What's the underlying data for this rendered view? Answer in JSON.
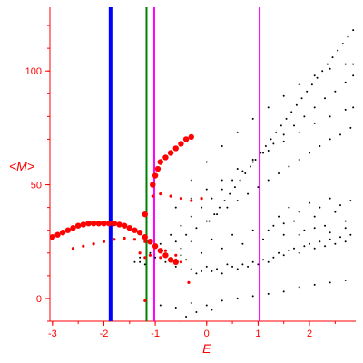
{
  "chart_data": {
    "type": "scatter",
    "xlabel": "E",
    "ylabel": "<M>",
    "xlim": [
      -3.05,
      2.9
    ],
    "ylim": [
      -10,
      128
    ],
    "x_ticks": [
      -3,
      -2,
      -1,
      0,
      1,
      2
    ],
    "y_ticks": [
      0,
      50,
      100
    ],
    "colors": {
      "axis": "#ff0000",
      "tick_labels": "#ff0000",
      "black_points": "#000000",
      "red_points": "#ff0000",
      "vline_blue": "#0000ff",
      "vline_green": "#008000",
      "vline_magenta": "#ff00ff"
    },
    "vertical_lines": [
      {
        "x": -1.87,
        "color": "#0000ff",
        "width": 4
      },
      {
        "x": -1.17,
        "color": "#008000",
        "width": 2
      },
      {
        "x": -1.02,
        "color": "#ff00ff",
        "width": 2
      },
      {
        "x": 1.03,
        "color": "#ff00ff",
        "width": 2
      }
    ],
    "series": [
      {
        "color": "#000000",
        "marker": "dot",
        "points": [
          [
            -1.3,
            16
          ],
          [
            -1.1,
            20
          ],
          [
            -0.9,
            24
          ],
          [
            -0.7,
            28
          ],
          [
            -0.5,
            32
          ],
          [
            -0.3,
            36
          ],
          [
            -0.1,
            40
          ],
          [
            0.1,
            44
          ],
          [
            0.3,
            48
          ],
          [
            0.5,
            52
          ],
          [
            0.7,
            56
          ],
          [
            0.9,
            60
          ],
          [
            1.1,
            64
          ],
          [
            1.3,
            68
          ],
          [
            1.5,
            72
          ],
          [
            1.7,
            76
          ],
          [
            1.9,
            80
          ],
          [
            2.1,
            84
          ],
          [
            2.3,
            88
          ],
          [
            2.5,
            91
          ],
          [
            2.7,
            95
          ],
          [
            2.85,
            98
          ],
          [
            -0.3,
            52
          ],
          [
            0,
            60
          ],
          [
            0.3,
            67
          ],
          [
            0.6,
            73
          ],
          [
            0.9,
            79
          ],
          [
            1.2,
            84
          ],
          [
            1.5,
            89
          ],
          [
            1.8,
            94
          ],
          [
            2.1,
            98
          ],
          [
            2.4,
            101
          ],
          [
            2.7,
            103
          ],
          [
            2.85,
            103
          ],
          [
            -0.6,
            40
          ],
          [
            -0.3,
            44
          ],
          [
            0,
            48
          ],
          [
            0.3,
            52
          ],
          [
            0.6,
            57
          ],
          [
            0.9,
            61
          ],
          [
            1.2,
            65
          ],
          [
            1.5,
            69
          ],
          [
            1.8,
            73
          ],
          [
            2.1,
            77
          ],
          [
            2.4,
            80
          ],
          [
            2.7,
            83
          ],
          [
            2.85,
            84
          ],
          [
            -0.6,
            25
          ],
          [
            -0.4,
            28
          ],
          [
            -0.2,
            31
          ],
          [
            0,
            34
          ],
          [
            0.2,
            37
          ],
          [
            0.4,
            40
          ],
          [
            0.6,
            43
          ],
          [
            0.8,
            46
          ],
          [
            1.0,
            49
          ],
          [
            1.2,
            52
          ],
          [
            1.4,
            55
          ],
          [
            1.6,
            58
          ],
          [
            1.8,
            61
          ],
          [
            2.0,
            64
          ],
          [
            2.2,
            67
          ],
          [
            2.4,
            70
          ],
          [
            2.6,
            72
          ],
          [
            2.8,
            75
          ],
          [
            2.85,
            118
          ],
          [
            2.75,
            115
          ],
          [
            2.65,
            112
          ],
          [
            2.55,
            109
          ],
          [
            2.45,
            106
          ],
          [
            2.35,
            103
          ],
          [
            2.25,
            100
          ],
          [
            2.15,
            97
          ],
          [
            2.05,
            94
          ],
          [
            1.95,
            91
          ],
          [
            1.85,
            88
          ],
          [
            1.75,
            85
          ],
          [
            1.65,
            82
          ],
          [
            1.55,
            79
          ],
          [
            1.45,
            76
          ],
          [
            1.35,
            73
          ],
          [
            1.25,
            70
          ],
          [
            1.15,
            67
          ],
          [
            1.05,
            64
          ],
          [
            0.95,
            61
          ],
          [
            0.85,
            58
          ],
          [
            0.75,
            55
          ],
          [
            0.65,
            52
          ],
          [
            0.55,
            49
          ],
          [
            0.45,
            46
          ],
          [
            0.35,
            43
          ],
          [
            0.25,
            40
          ],
          [
            0.15,
            37
          ],
          [
            0.05,
            34
          ],
          [
            -1.4,
            16
          ],
          [
            -1.3,
            18
          ],
          [
            -1.2,
            15
          ],
          [
            -1.0,
            18
          ],
          [
            -0.8,
            16
          ],
          [
            -0.6,
            14
          ],
          [
            -0.5,
            19
          ],
          [
            -0.4,
            17
          ],
          [
            -0.3,
            13
          ],
          [
            -0.2,
            11
          ],
          [
            -0.1,
            12
          ],
          [
            0,
            14
          ],
          [
            0.1,
            12
          ],
          [
            0.2,
            13
          ],
          [
            0.3,
            11
          ],
          [
            0.4,
            15
          ],
          [
            0.5,
            14
          ],
          [
            0.6,
            13
          ],
          [
            0.7,
            15
          ],
          [
            0.8,
            14
          ],
          [
            0.9,
            16
          ],
          [
            1.0,
            15
          ],
          [
            1.1,
            17
          ],
          [
            1.2,
            16
          ],
          [
            1.3,
            18
          ],
          [
            1.4,
            20
          ],
          [
            1.5,
            19
          ],
          [
            1.6,
            21
          ],
          [
            1.7,
            22
          ],
          [
            1.8,
            20
          ],
          [
            1.9,
            23
          ],
          [
            2.0,
            24
          ],
          [
            2.1,
            22
          ],
          [
            2.2,
            25
          ],
          [
            2.3,
            23
          ],
          [
            2.4,
            26
          ],
          [
            2.5,
            24
          ],
          [
            2.6,
            27
          ],
          [
            2.7,
            25
          ],
          [
            2.8,
            28
          ],
          [
            -0.5,
            22
          ],
          [
            -0.3,
            25
          ],
          [
            -0.1,
            20
          ],
          [
            0.1,
            26
          ],
          [
            0.3,
            22
          ],
          [
            0.5,
            28
          ],
          [
            0.7,
            24
          ],
          [
            0.9,
            30
          ],
          [
            1.1,
            26
          ],
          [
            1.3,
            32
          ],
          [
            1.5,
            28
          ],
          [
            1.7,
            34
          ],
          [
            1.9,
            30
          ],
          [
            2.1,
            36
          ],
          [
            2.3,
            32
          ],
          [
            2.5,
            38
          ],
          [
            2.7,
            34
          ],
          [
            1.4,
            36
          ],
          [
            1.6,
            40
          ],
          [
            1.8,
            38
          ],
          [
            2.0,
            42
          ],
          [
            2.2,
            40
          ],
          [
            2.4,
            44
          ],
          [
            2.6,
            41
          ],
          [
            2.8,
            43
          ],
          [
            1.2,
            30
          ],
          [
            1.5,
            33
          ],
          [
            1.8,
            28
          ],
          [
            2.1,
            31
          ],
          [
            2.4,
            29
          ],
          [
            2.7,
            31
          ],
          [
            -0.9,
            -3
          ],
          [
            -0.6,
            -4
          ],
          [
            -0.3,
            -2
          ],
          [
            0,
            -3
          ],
          [
            0.3,
            -1
          ],
          [
            0.6,
            0
          ],
          [
            0.9,
            1
          ],
          [
            1.2,
            2
          ],
          [
            1.5,
            3
          ],
          [
            1.8,
            5
          ],
          [
            2.1,
            6
          ],
          [
            2.4,
            7
          ],
          [
            2.7,
            8
          ],
          [
            -0.4,
            -8
          ],
          [
            -0.2,
            -6
          ],
          [
            0.1,
            -5
          ]
        ]
      },
      {
        "color": "#ff0000",
        "marker": "dot",
        "points": [
          [
            -3.0,
            27
          ],
          [
            -2.9,
            28
          ],
          [
            -2.8,
            29
          ],
          [
            -2.7,
            30
          ],
          [
            -2.6,
            31
          ],
          [
            -2.5,
            32
          ],
          [
            -2.4,
            32.5
          ],
          [
            -2.3,
            33
          ],
          [
            -2.2,
            33
          ],
          [
            -2.1,
            33
          ],
          [
            -2.0,
            33
          ],
          [
            -1.9,
            33
          ],
          [
            -1.8,
            33
          ],
          [
            -1.7,
            32.5
          ],
          [
            -1.6,
            32
          ],
          [
            -1.5,
            31
          ],
          [
            -1.4,
            30
          ],
          [
            -1.3,
            29
          ],
          [
            -1.2,
            27
          ],
          [
            -1.1,
            25
          ],
          [
            -1.0,
            23
          ],
          [
            -0.9,
            21
          ],
          [
            -0.8,
            19
          ],
          [
            -0.7,
            17
          ],
          [
            -0.6,
            16
          ],
          [
            -2.6,
            22
          ],
          [
            -2.4,
            23
          ],
          [
            -2.2,
            24
          ],
          [
            -2.0,
            25
          ],
          [
            -1.8,
            26
          ],
          [
            -1.6,
            26.5
          ],
          [
            -1.4,
            26
          ],
          [
            -1.2,
            25
          ],
          [
            -1.0,
            23
          ],
          [
            -0.8,
            21
          ],
          [
            -0.6,
            19
          ],
          [
            -1.2,
            37
          ],
          [
            -1.05,
            50
          ],
          [
            -1.0,
            54
          ],
          [
            -0.95,
            57
          ],
          [
            -0.9,
            60
          ],
          [
            -0.8,
            62
          ],
          [
            -0.7,
            64
          ],
          [
            -0.6,
            66
          ],
          [
            -0.5,
            68
          ],
          [
            -0.4,
            70
          ],
          [
            -0.3,
            71
          ],
          [
            -1.05,
            45
          ],
          [
            -0.9,
            46
          ],
          [
            -0.7,
            45
          ],
          [
            -0.5,
            44
          ],
          [
            -0.3,
            43
          ],
          [
            -0.1,
            44
          ],
          [
            -1.3,
            20
          ],
          [
            -1.2,
            18
          ],
          [
            -1.1,
            19
          ],
          [
            -0.9,
            18
          ],
          [
            -0.6,
            17
          ],
          [
            -0.5,
            16
          ],
          [
            -0.35,
            7
          ],
          [
            -1.2,
            -1
          ]
        ]
      }
    ]
  }
}
